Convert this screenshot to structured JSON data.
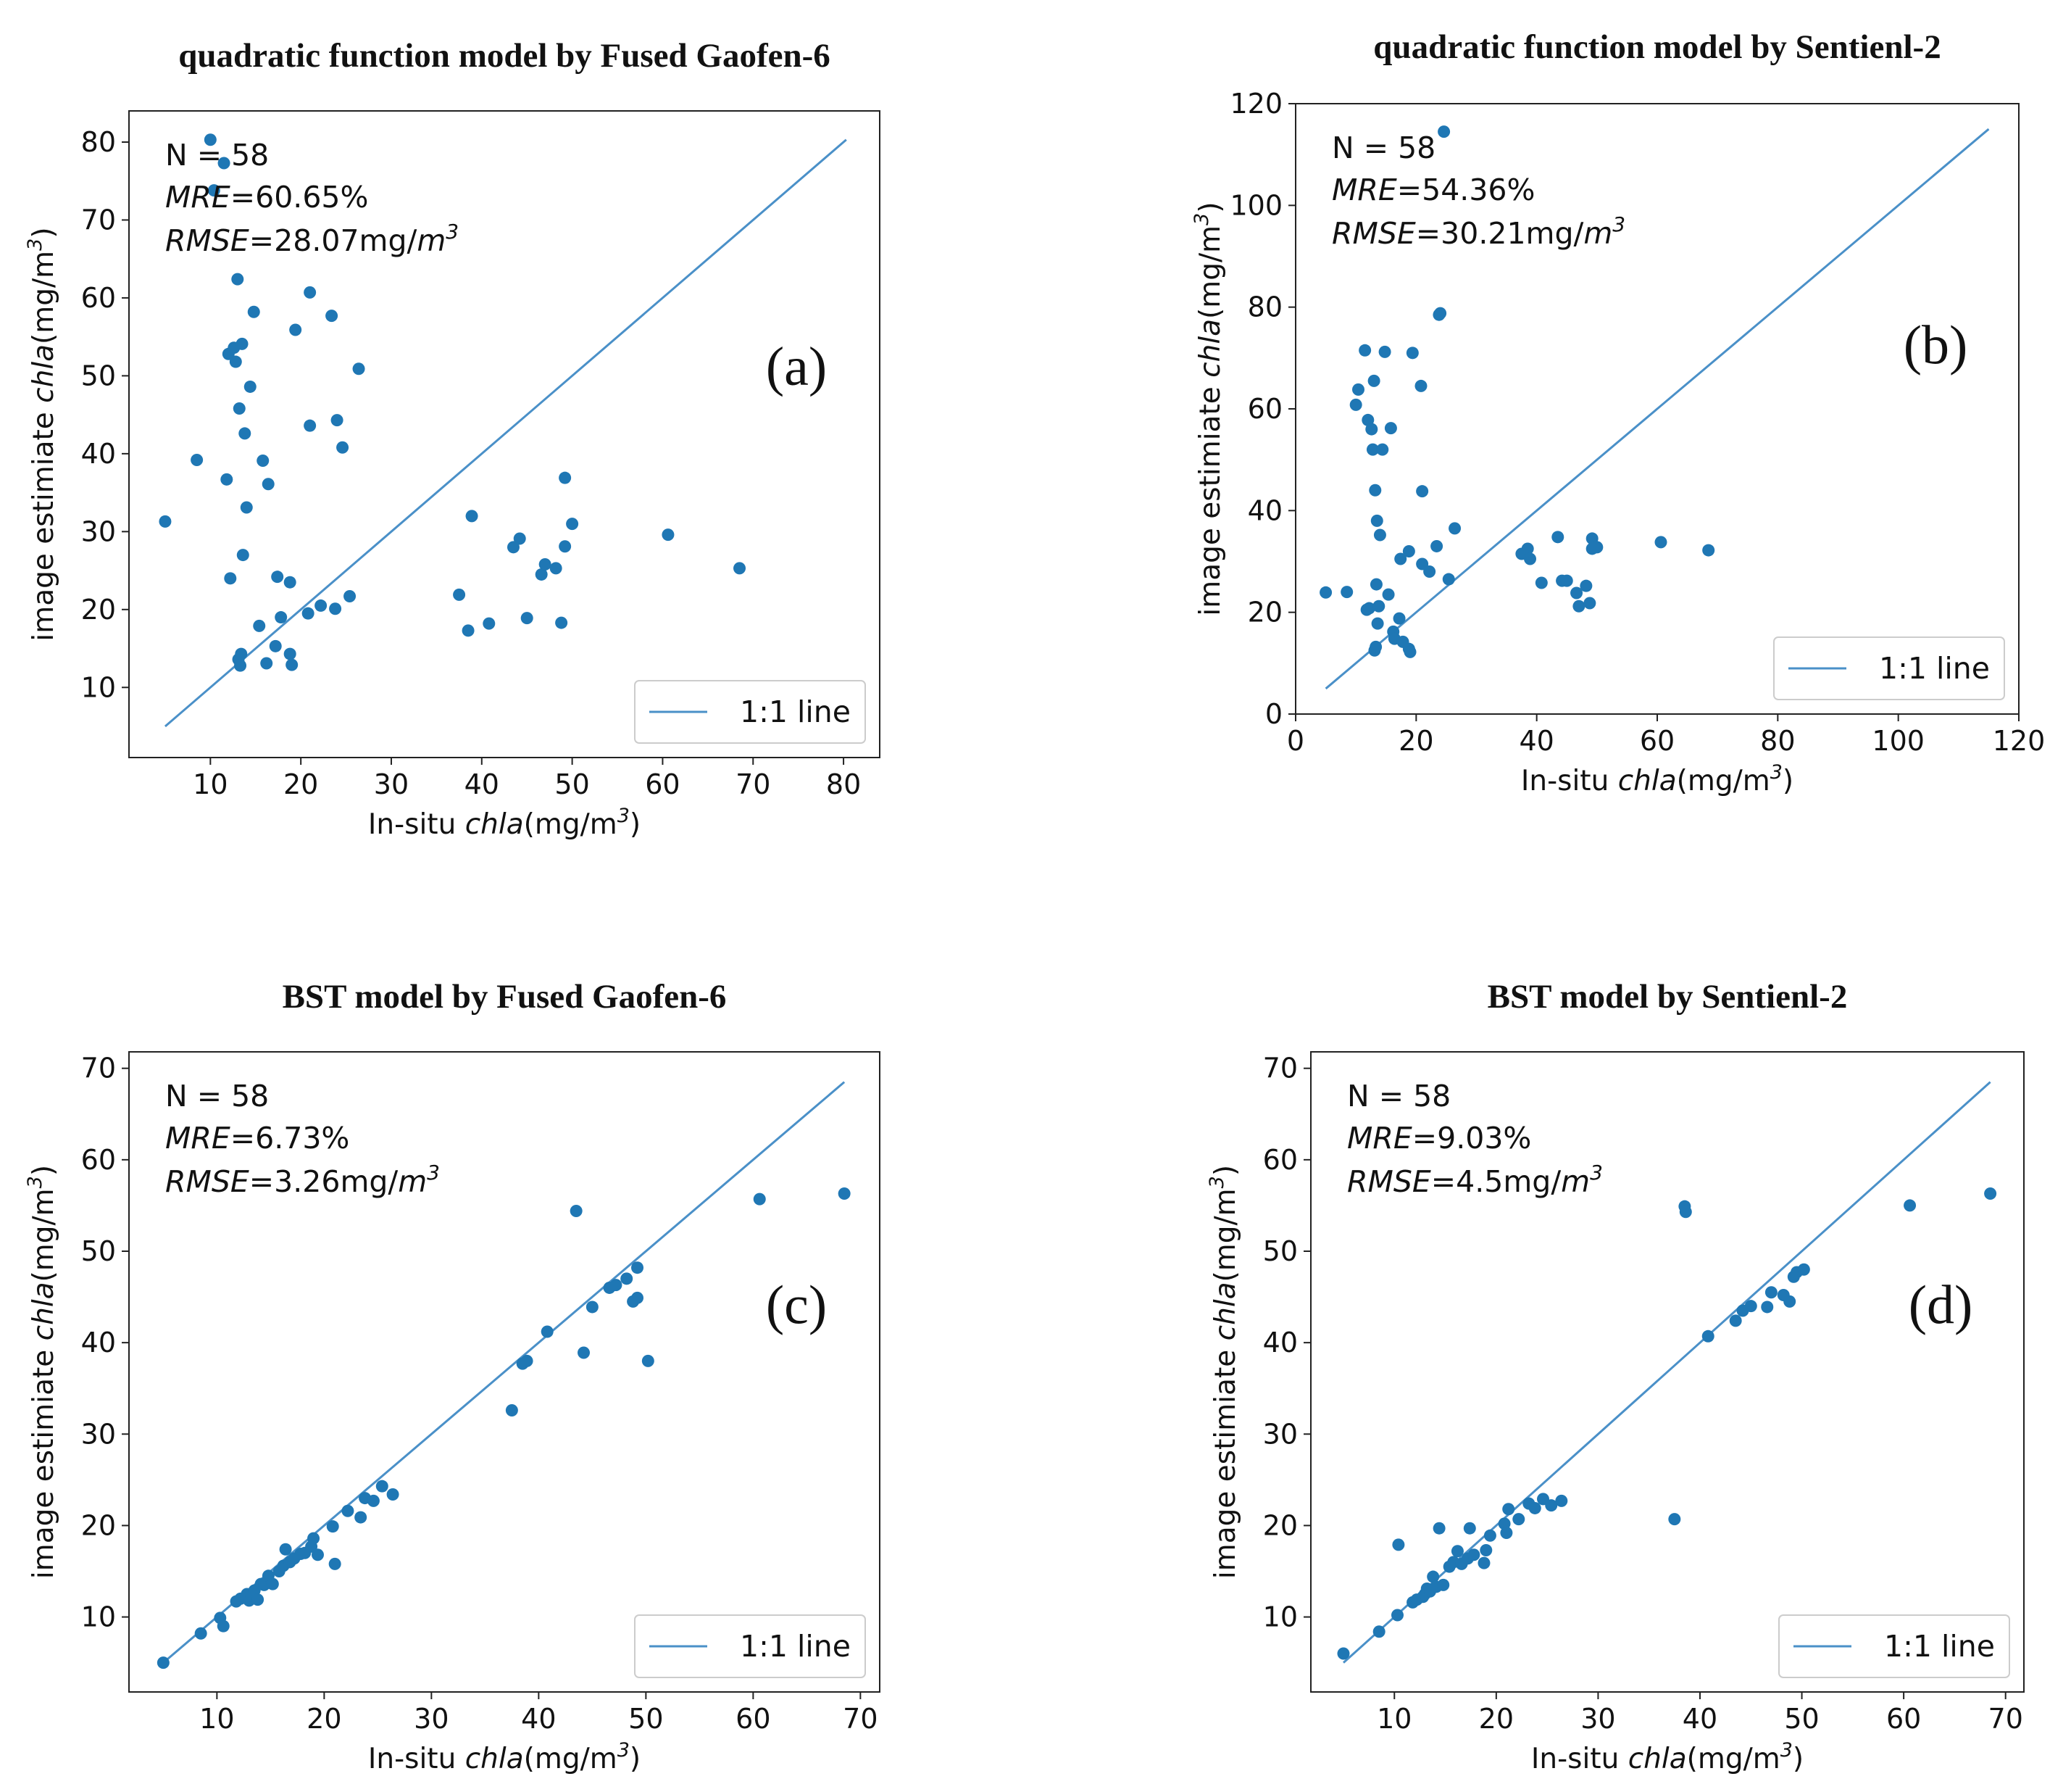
{
  "chart_data": [
    {
      "type": "scatter",
      "title": "quadratic function model by Fused Gaofen-6",
      "panel_label": "(a)",
      "xlabel_prefix": "In-situ ",
      "xlabel_var": "chla",
      "xlabel_unit": "(mg/m",
      "xlabel_sup": "3",
      "xlabel_close": ")",
      "ylabel_prefix": "image estimiate ",
      "ylabel_var": "chla",
      "ylabel_unit": "(mg/m",
      "ylabel_sup": "3",
      "ylabel_close": ")",
      "stats": {
        "n": "N = 58",
        "mre_name": "MRE",
        "mre_value": "=60.65%",
        "rmse_name": "RMSE",
        "rmse_value": "=28.07mg/",
        "rmse_unit": "m",
        "rmse_sup": "3"
      },
      "xlim": [
        1,
        84
      ],
      "ylim": [
        1,
        84
      ],
      "xticks": [
        10,
        20,
        30,
        40,
        50,
        60,
        70,
        80
      ],
      "yticks": [
        10,
        20,
        30,
        40,
        50,
        60,
        70,
        80
      ],
      "legend": "1:1 line",
      "line": [
        [
          5,
          5
        ],
        [
          80.3,
          80.3
        ]
      ],
      "points": [
        [
          5,
          31.3
        ],
        [
          8.5,
          39.2
        ],
        [
          10,
          80.3
        ],
        [
          10.4,
          73.8
        ],
        [
          11.5,
          77.3
        ],
        [
          11.8,
          36.7
        ],
        [
          12,
          52.8
        ],
        [
          12.2,
          24
        ],
        [
          12.6,
          53.6
        ],
        [
          13,
          62.4
        ],
        [
          12.8,
          51.8
        ],
        [
          13.2,
          45.8
        ],
        [
          13.5,
          54.1
        ],
        [
          13.1,
          13.6
        ],
        [
          13.3,
          12.8
        ],
        [
          13.4,
          14.3
        ],
        [
          13.6,
          27
        ],
        [
          13.8,
          42.6
        ],
        [
          14,
          33.1
        ],
        [
          14.4,
          48.6
        ],
        [
          14.8,
          58.2
        ],
        [
          15.4,
          17.9
        ],
        [
          15.8,
          39.1
        ],
        [
          16.2,
          13.1
        ],
        [
          16.4,
          36.1
        ],
        [
          17.2,
          15.3
        ],
        [
          17.4,
          24.2
        ],
        [
          17.8,
          19
        ],
        [
          18.8,
          23.5
        ],
        [
          18.8,
          14.3
        ],
        [
          19,
          12.9
        ],
        [
          19.4,
          55.9
        ],
        [
          20.8,
          19.5
        ],
        [
          21,
          43.6
        ],
        [
          21,
          60.7
        ],
        [
          22.2,
          20.5
        ],
        [
          23.4,
          57.7
        ],
        [
          23.8,
          20.1
        ],
        [
          24,
          44.3
        ],
        [
          24.6,
          40.8
        ],
        [
          25.4,
          21.7
        ],
        [
          26.4,
          50.9
        ],
        [
          37.5,
          21.9
        ],
        [
          38.5,
          17.3
        ],
        [
          38.9,
          32
        ],
        [
          40.8,
          18.2
        ],
        [
          43.5,
          28
        ],
        [
          44.2,
          29.1
        ],
        [
          45,
          18.9
        ],
        [
          46.6,
          24.5
        ],
        [
          47,
          25.8
        ],
        [
          48.2,
          25.3
        ],
        [
          48.8,
          18.3
        ],
        [
          49.2,
          36.9
        ],
        [
          49.2,
          28.1
        ],
        [
          50,
          31
        ],
        [
          60.6,
          29.6
        ],
        [
          68.5,
          25.3
        ]
      ]
    },
    {
      "type": "scatter",
      "title": "quadratic function model by Sentienl-2",
      "panel_label": "(b)",
      "xlabel_prefix": "In-situ ",
      "xlabel_var": "chla",
      "xlabel_unit": "(mg/m",
      "xlabel_sup": "3",
      "xlabel_close": ")",
      "ylabel_prefix": "image estimiate ",
      "ylabel_var": "chla",
      "ylabel_unit": "(mg/m",
      "ylabel_sup": "3",
      "ylabel_close": ")",
      "stats": {
        "n": "N = 58",
        "mre_name": "MRE",
        "mre_value": "=54.36%",
        "rmse_name": "RMSE",
        "rmse_value": "=30.21mg/",
        "rmse_unit": "m",
        "rmse_sup": "3"
      },
      "xlim": [
        0,
        120
      ],
      "ylim": [
        0,
        120
      ],
      "xticks": [
        0,
        20,
        40,
        60,
        80,
        100,
        120
      ],
      "yticks": [
        0,
        20,
        40,
        60,
        80,
        100,
        120
      ],
      "legend": "1:1 line",
      "line": [
        [
          5,
          5
        ],
        [
          115,
          115
        ]
      ],
      "points": [
        [
          5,
          23.9
        ],
        [
          8.5,
          24
        ],
        [
          10,
          60.8
        ],
        [
          10.4,
          63.8
        ],
        [
          11.5,
          71.5
        ],
        [
          11.8,
          20.5
        ],
        [
          12,
          57.8
        ],
        [
          12.2,
          20.8
        ],
        [
          12.6,
          56
        ],
        [
          13,
          65.5
        ],
        [
          12.8,
          52
        ],
        [
          13.2,
          44
        ],
        [
          13.5,
          38
        ],
        [
          13.1,
          12.5
        ],
        [
          13.3,
          13.2
        ],
        [
          13.4,
          25.5
        ],
        [
          13.6,
          17.8
        ],
        [
          13.8,
          21.2
        ],
        [
          14,
          35.2
        ],
        [
          14.4,
          52
        ],
        [
          14.8,
          71.2
        ],
        [
          15.4,
          23.5
        ],
        [
          15.8,
          56.2
        ],
        [
          16.2,
          16.2
        ],
        [
          16.4,
          14.8
        ],
        [
          17.2,
          18.8
        ],
        [
          17.4,
          30.5
        ],
        [
          17.8,
          14.2
        ],
        [
          18.8,
          12.8
        ],
        [
          18.8,
          32
        ],
        [
          19,
          12.2
        ],
        [
          19.4,
          71
        ],
        [
          20.8,
          64.5
        ],
        [
          21,
          43.8
        ],
        [
          21,
          29.5
        ],
        [
          22.2,
          28
        ],
        [
          23.4,
          33
        ],
        [
          23.8,
          78.5
        ],
        [
          24,
          78.8
        ],
        [
          24.6,
          114.5
        ],
        [
          25.4,
          26.5
        ],
        [
          26.4,
          36.5
        ],
        [
          37.5,
          31.5
        ],
        [
          38.5,
          32.5
        ],
        [
          38.9,
          30.5
        ],
        [
          40.8,
          25.8
        ],
        [
          43.5,
          34.8
        ],
        [
          44.2,
          26.2
        ],
        [
          45,
          26.2
        ],
        [
          46.6,
          23.8
        ],
        [
          47,
          21.2
        ],
        [
          48.2,
          25.2
        ],
        [
          48.8,
          21.8
        ],
        [
          49.2,
          34.5
        ],
        [
          49.2,
          32.5
        ],
        [
          50,
          32.8
        ],
        [
          60.6,
          33.8
        ],
        [
          68.5,
          32.2
        ]
      ]
    },
    {
      "type": "scatter",
      "title": "BST model by Fused Gaofen-6",
      "panel_label": "(c)",
      "xlabel_prefix": "In-situ ",
      "xlabel_var": "chla",
      "xlabel_unit": "(mg/m",
      "xlabel_sup": "3",
      "xlabel_close": ")",
      "ylabel_prefix": "image estimiate ",
      "ylabel_var": "chla",
      "ylabel_unit": "(mg/m",
      "ylabel_sup": "3",
      "ylabel_close": ")",
      "stats": {
        "n": "N = 58",
        "mre_name": "MRE",
        "mre_value": "=6.73%",
        "rmse_name": "RMSE",
        "rmse_value": "=3.26mg/",
        "rmse_unit": "m",
        "rmse_sup": "3"
      },
      "xlim": [
        1.8,
        71.8
      ],
      "ylim": [
        1.8,
        71.8
      ],
      "xticks": [
        10,
        20,
        30,
        40,
        50,
        60,
        70
      ],
      "yticks": [
        10,
        20,
        30,
        40,
        50,
        60,
        70
      ],
      "legend": "1:1 line",
      "line": [
        [
          5,
          5
        ],
        [
          68.5,
          68.5
        ]
      ],
      "points": [
        [
          5,
          5
        ],
        [
          8.5,
          8.2
        ],
        [
          10.3,
          9.9
        ],
        [
          10.6,
          9
        ],
        [
          11.8,
          11.7
        ],
        [
          12.2,
          12
        ],
        [
          12.8,
          12.5
        ],
        [
          13,
          11.8
        ],
        [
          13.2,
          12.3
        ],
        [
          13.5,
          12.9
        ],
        [
          13.8,
          11.9
        ],
        [
          14.1,
          13.6
        ],
        [
          14.4,
          13.5
        ],
        [
          14.8,
          14.5
        ],
        [
          15.2,
          13.6
        ],
        [
          15.8,
          15
        ],
        [
          16.2,
          15.6
        ],
        [
          16.4,
          17.4
        ],
        [
          16.8,
          16
        ],
        [
          17.2,
          16.4
        ],
        [
          17.8,
          16.9
        ],
        [
          18.2,
          17
        ],
        [
          18.8,
          17.7
        ],
        [
          19,
          18.6
        ],
        [
          19.4,
          16.8
        ],
        [
          20.8,
          19.9
        ],
        [
          21,
          15.8
        ],
        [
          22.2,
          21.6
        ],
        [
          23.4,
          20.9
        ],
        [
          23.8,
          23
        ],
        [
          24.6,
          22.7
        ],
        [
          25.4,
          24.3
        ],
        [
          26.4,
          23.4
        ],
        [
          37.5,
          32.6
        ],
        [
          38.5,
          37.7
        ],
        [
          38.9,
          38
        ],
        [
          40.8,
          41.2
        ],
        [
          43.5,
          54.4
        ],
        [
          44.2,
          38.9
        ],
        [
          45,
          43.9
        ],
        [
          46.6,
          46
        ],
        [
          47.2,
          46.3
        ],
        [
          48.2,
          47
        ],
        [
          48.8,
          44.5
        ],
        [
          49.2,
          44.9
        ],
        [
          49.2,
          48.2
        ],
        [
          50.2,
          38
        ],
        [
          60.6,
          55.7
        ],
        [
          68.5,
          56.3
        ]
      ]
    },
    {
      "type": "scatter",
      "title": "BST model by  Sentienl-2",
      "panel_label": "(d)",
      "xlabel_prefix": "In-situ ",
      "xlabel_var": "chla",
      "xlabel_unit": "(mg/m",
      "xlabel_sup": "3",
      "xlabel_close": ")",
      "ylabel_prefix": "image estimiate ",
      "ylabel_var": "chla",
      "ylabel_unit": "(mg/m",
      "ylabel_sup": "3",
      "ylabel_close": ")",
      "stats": {
        "n": "N = 58",
        "mre_name": "MRE",
        "mre_value": "=9.03%",
        "rmse_name": "RMSE",
        "rmse_value": "=4.5mg/",
        "rmse_unit": "m",
        "rmse_sup": "3"
      },
      "xlim": [
        1.8,
        71.8
      ],
      "ylim": [
        1.8,
        71.8
      ],
      "xticks": [
        10,
        20,
        30,
        40,
        50,
        60,
        70
      ],
      "yticks": [
        10,
        20,
        30,
        40,
        50,
        60,
        70
      ],
      "legend": "1:1 line",
      "line": [
        [
          5,
          5
        ],
        [
          68.5,
          68.5
        ]
      ],
      "points": [
        [
          5,
          6
        ],
        [
          8.5,
          8.4
        ],
        [
          10.3,
          10.2
        ],
        [
          10.4,
          17.9
        ],
        [
          11.8,
          11.6
        ],
        [
          12.2,
          11.9
        ],
        [
          12.8,
          12.2
        ],
        [
          13,
          12.5
        ],
        [
          13.2,
          13.1
        ],
        [
          13.5,
          12.8
        ],
        [
          13.8,
          14.4
        ],
        [
          14.1,
          13.3
        ],
        [
          14.4,
          19.7
        ],
        [
          14.8,
          13.5
        ],
        [
          15.4,
          15.5
        ],
        [
          15.8,
          16
        ],
        [
          16.2,
          17.2
        ],
        [
          16.6,
          15.8
        ],
        [
          17.2,
          16.4
        ],
        [
          17.4,
          19.7
        ],
        [
          17.8,
          16.8
        ],
        [
          18.8,
          15.9
        ],
        [
          19,
          17.3
        ],
        [
          19.4,
          18.9
        ],
        [
          20.8,
          20.2
        ],
        [
          21,
          19.2
        ],
        [
          21.2,
          21.8
        ],
        [
          22.2,
          20.7
        ],
        [
          23.2,
          22.4
        ],
        [
          23.8,
          21.9
        ],
        [
          24.6,
          22.9
        ],
        [
          25.4,
          22.2
        ],
        [
          26.4,
          22.7
        ],
        [
          37.5,
          20.7
        ],
        [
          38.5,
          54.9
        ],
        [
          38.6,
          54.3
        ],
        [
          40.8,
          40.7
        ],
        [
          43.5,
          42.4
        ],
        [
          44.2,
          43.5
        ],
        [
          45,
          44
        ],
        [
          46.6,
          43.9
        ],
        [
          47,
          45.5
        ],
        [
          48.2,
          45.2
        ],
        [
          48.8,
          44.5
        ],
        [
          49.2,
          47.2
        ],
        [
          49.5,
          47.7
        ],
        [
          50.2,
          48
        ],
        [
          60.6,
          55
        ],
        [
          68.5,
          56.3
        ]
      ]
    }
  ]
}
